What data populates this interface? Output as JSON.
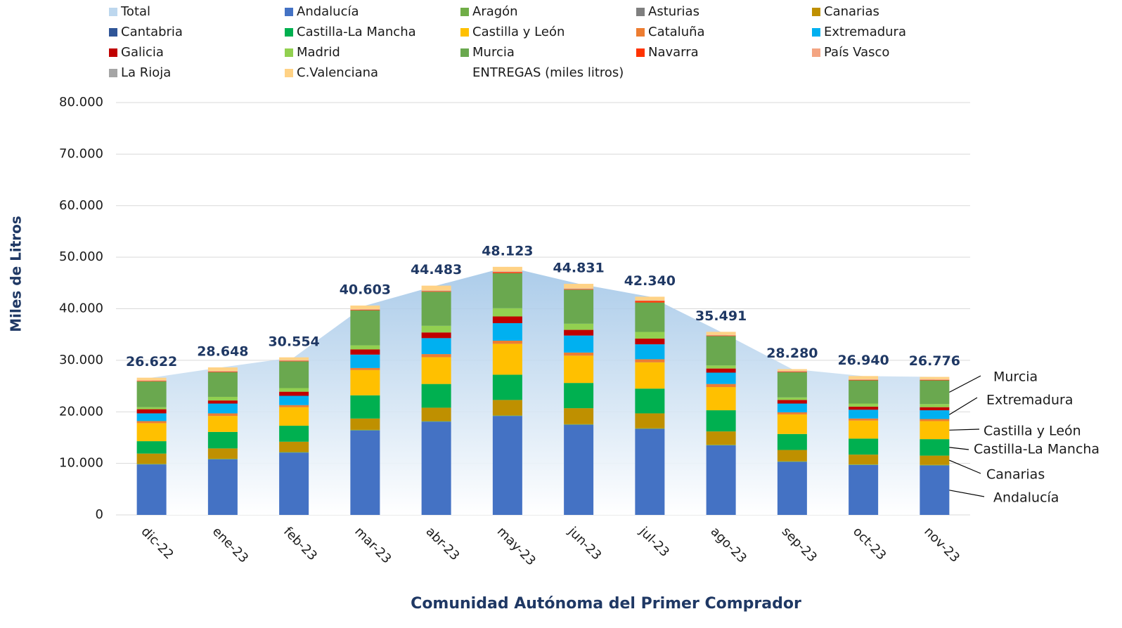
{
  "chart_data": {
    "type": "stacked-bar",
    "y_label": "Miles de Litros",
    "x_label": "Comunidad Autónoma del Primer Comprador",
    "categories": [
      "dic-22",
      "ene-23",
      "feb-23",
      "mar-23",
      "abr-23",
      "may-23",
      "jun-23",
      "jul-23",
      "ago-23",
      "sep-23",
      "oct-23",
      "nov-23"
    ],
    "ylim": [
      0,
      80000
    ],
    "yticks": [
      0,
      {
        "value": 10000,
        "label": "10.000"
      },
      {
        "value": 20000,
        "label": "20.000"
      },
      {
        "value": 30000,
        "label": "30.000"
      },
      {
        "value": 40000,
        "label": "40.000"
      },
      {
        "value": 50000,
        "label": "50.000"
      },
      {
        "value": 60000,
        "label": "60.000"
      },
      {
        "value": 70000,
        "label": "70.000"
      },
      {
        "value": 80000,
        "label": "80.000"
      }
    ],
    "grid": true,
    "total": {
      "name": "Total",
      "color": "#bdd7ee",
      "values": [
        26622,
        28648,
        30554,
        40603,
        44483,
        48123,
        44831,
        42340,
        35491,
        28280,
        26940,
        26776
      ],
      "value_labels": [
        "26.622",
        "28.648",
        "30.554",
        "40.603",
        "44.483",
        "48.123",
        "44.831",
        "42.340",
        "35.491",
        "28.280",
        "26.940",
        "26.776"
      ]
    },
    "series": [
      {
        "name": "Andalucía",
        "color": "#4472c4",
        "values": [
          9800,
          10800,
          12100,
          16400,
          18100,
          19200,
          17500,
          16700,
          13500,
          10300,
          9700,
          9600
        ]
      },
      {
        "name": "Aragón",
        "color": "#70ad47",
        "values": [
          100,
          100,
          100,
          100,
          100,
          100,
          100,
          100,
          100,
          100,
          100,
          100
        ]
      },
      {
        "name": "Asturias",
        "color": "#7f7f7f",
        "values": [
          0,
          0,
          0,
          0,
          0,
          0,
          0,
          0,
          0,
          0,
          0,
          0
        ]
      },
      {
        "name": "Canarias",
        "color": "#bf9000",
        "values": [
          2000,
          2000,
          2000,
          2200,
          2600,
          3000,
          3100,
          2900,
          2600,
          2200,
          1900,
          1800
        ]
      },
      {
        "name": "Cantabria",
        "color": "#2f5597",
        "values": [
          0,
          0,
          0,
          0,
          0,
          0,
          0,
          0,
          0,
          0,
          0,
          0
        ]
      },
      {
        "name": "Castilla-La Mancha",
        "color": "#00b050",
        "values": [
          2400,
          3200,
          3100,
          4500,
          4600,
          4900,
          4900,
          4800,
          4100,
          3100,
          3100,
          3200
        ]
      },
      {
        "name": "Castilla y León",
        "color": "#ffc000",
        "values": [
          3500,
          3100,
          3600,
          4900,
          5200,
          6000,
          5300,
          5100,
          4500,
          3800,
          3500,
          3500
        ]
      },
      {
        "name": "Cataluña",
        "color": "#ed7d31",
        "values": [
          400,
          500,
          400,
          400,
          600,
          600,
          600,
          600,
          600,
          400,
          400,
          400
        ]
      },
      {
        "name": "Extremadura",
        "color": "#00b0f0",
        "values": [
          1500,
          1900,
          1800,
          2600,
          3100,
          3400,
          3300,
          2900,
          2200,
          1700,
          1700,
          1700
        ]
      },
      {
        "name": "Galicia",
        "color": "#c00000",
        "values": [
          800,
          600,
          800,
          1000,
          1100,
          1300,
          1100,
          1100,
          800,
          700,
          600,
          600
        ]
      },
      {
        "name": "Madrid",
        "color": "#92d050",
        "values": [
          400,
          700,
          700,
          800,
          1300,
          1600,
          1200,
          1300,
          600,
          500,
          600,
          600
        ]
      },
      {
        "name": "Murcia",
        "color": "#6aa84f",
        "values": [
          5000,
          4800,
          5200,
          6800,
          6600,
          6800,
          6600,
          5700,
          5700,
          4900,
          4500,
          4600
        ]
      },
      {
        "name": "Navarra",
        "color": "#ff3300",
        "values": [
          100,
          100,
          100,
          100,
          100,
          200,
          100,
          300,
          100,
          100,
          100,
          100
        ]
      },
      {
        "name": "País Vasco",
        "color": "#f4a582",
        "values": [
          100,
          100,
          100,
          100,
          100,
          100,
          100,
          100,
          100,
          100,
          100,
          100
        ]
      },
      {
        "name": "La Rioja",
        "color": "#a5a5a5",
        "values": [
          20,
          20,
          20,
          20,
          30,
          30,
          30,
          30,
          20,
          20,
          20,
          20
        ]
      },
      {
        "name": "C.Valenciana",
        "color": "#ffd285",
        "values": [
          500,
          700,
          550,
          700,
          950,
          900,
          900,
          700,
          600,
          360,
          620,
          456
        ]
      }
    ],
    "legend_note": "ENTREGAS (miles litros)",
    "annotations": [
      "Murcia",
      "Extremadura",
      "Castilla y León",
      "Castilla-La Mancha",
      "Canarias",
      "Andalucía"
    ]
  }
}
